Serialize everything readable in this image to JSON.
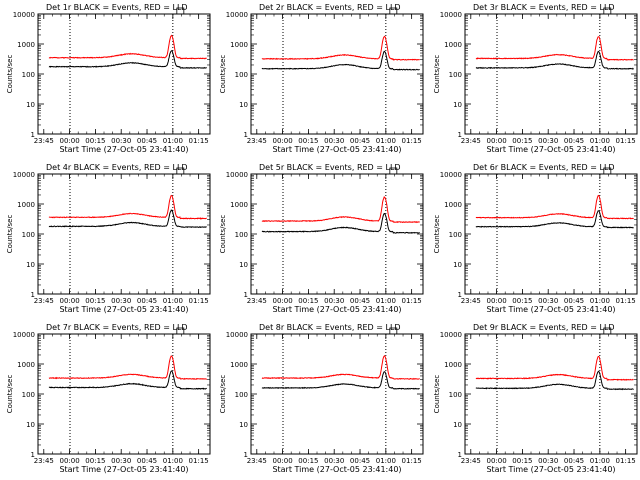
{
  "figure": {
    "x_tick_labels": [
      "23:45",
      "00:00",
      "00:15",
      "00:30",
      "00:45",
      "01:00",
      "01:15"
    ],
    "x_ticks_hours": [
      -0.25,
      0,
      0.25,
      0.5,
      0.75,
      1.0,
      1.25
    ],
    "y_tick_labels": [
      "1",
      "10",
      "100",
      "1000",
      "10000"
    ],
    "y_ticks_values": [
      1,
      10,
      100,
      1000,
      10000
    ],
    "colors": {
      "events": "#000000",
      "lld": "#ff0000",
      "axes": "#000000",
      "background": "#ffffff"
    }
  },
  "chart_data": [
    {
      "type": "line",
      "title": "Det 1r BLACK = Events, RED = LLD",
      "xlabel": "Start Time (27-Oct-05 23:41:40)",
      "ylabel": "Counts/sec",
      "xlim": [
        -0.306,
        1.36
      ],
      "ylim": [
        1,
        10000
      ],
      "yscale": "log",
      "marker_lines_x": [
        0.004,
        1.0
      ],
      "grid": false,
      "series": [
        {
          "color": "#000000",
          "base": 175,
          "hump": 235,
          "peak": 600,
          "final": 160
        },
        {
          "color": "#ff0000",
          "base": 350,
          "hump": 470,
          "peak": 1900,
          "final": 330
        }
      ]
    },
    {
      "type": "line",
      "title": "Det 2r BLACK = Events, RED = LLD",
      "xlabel": "Start Time (27-Oct-05 23:41:40)",
      "ylabel": "Counts/sec",
      "xlim": [
        -0.306,
        1.36
      ],
      "ylim": [
        1,
        10000
      ],
      "yscale": "log",
      "marker_lines_x": [
        0.004,
        1.0
      ],
      "grid": false,
      "series": [
        {
          "color": "#000000",
          "base": 150,
          "hump": 205,
          "peak": 560,
          "final": 140
        },
        {
          "color": "#ff0000",
          "base": 320,
          "hump": 430,
          "peak": 1800,
          "final": 300
        }
      ]
    },
    {
      "type": "line",
      "title": "Det 3r BLACK = Events, RED = LLD",
      "xlabel": "Start Time (27-Oct-05 23:41:40)",
      "ylabel": "Counts/sec",
      "xlim": [
        -0.306,
        1.36
      ],
      "ylim": [
        1,
        10000
      ],
      "yscale": "log",
      "marker_lines_x": [
        0.004,
        1.0
      ],
      "grid": false,
      "series": [
        {
          "color": "#000000",
          "base": 160,
          "hump": 215,
          "peak": 560,
          "final": 150
        },
        {
          "color": "#ff0000",
          "base": 330,
          "hump": 440,
          "peak": 1800,
          "final": 300
        }
      ]
    },
    {
      "type": "line",
      "title": "Det 4r BLACK = Events, RED = LLD",
      "xlabel": "Start Time (27-Oct-05 23:41:40)",
      "ylabel": "Counts/sec",
      "xlim": [
        -0.306,
        1.36
      ],
      "ylim": [
        1,
        10000
      ],
      "yscale": "log",
      "marker_lines_x": [
        0.004,
        1.0
      ],
      "grid": false,
      "series": [
        {
          "color": "#000000",
          "base": 180,
          "hump": 240,
          "peak": 620,
          "final": 170
        },
        {
          "color": "#ff0000",
          "base": 360,
          "hump": 480,
          "peak": 1900,
          "final": 330
        }
      ]
    },
    {
      "type": "line",
      "title": "Det 5r BLACK = Events, RED = LLD",
      "xlabel": "Start Time (27-Oct-05 23:41:40)",
      "ylabel": "Counts/sec",
      "xlim": [
        -0.306,
        1.36
      ],
      "ylim": [
        1,
        10000
      ],
      "yscale": "log",
      "marker_lines_x": [
        0.004,
        1.0
      ],
      "grid": false,
      "series": [
        {
          "color": "#000000",
          "base": 120,
          "hump": 165,
          "peak": 480,
          "final": 110
        },
        {
          "color": "#ff0000",
          "base": 270,
          "hump": 370,
          "peak": 1700,
          "final": 250
        }
      ]
    },
    {
      "type": "line",
      "title": "Det 6r BLACK = Events, RED = LLD",
      "xlabel": "Start Time (27-Oct-05 23:41:40)",
      "ylabel": "Counts/sec",
      "xlim": [
        -0.306,
        1.36
      ],
      "ylim": [
        1,
        10000
      ],
      "yscale": "log",
      "marker_lines_x": [
        0.004,
        1.0
      ],
      "grid": false,
      "series": [
        {
          "color": "#000000",
          "base": 175,
          "hump": 235,
          "peak": 600,
          "final": 165
        },
        {
          "color": "#ff0000",
          "base": 350,
          "hump": 470,
          "peak": 1900,
          "final": 330
        }
      ]
    },
    {
      "type": "line",
      "title": "Det 7r BLACK = Events, RED = LLD",
      "xlabel": "Start Time (27-Oct-05 23:41:40)",
      "ylabel": "Counts/sec",
      "xlim": [
        -0.306,
        1.36
      ],
      "ylim": [
        1,
        10000
      ],
      "yscale": "log",
      "marker_lines_x": [
        0.004,
        1.0
      ],
      "grid": false,
      "series": [
        {
          "color": "#000000",
          "base": 165,
          "hump": 220,
          "peak": 580,
          "final": 150
        },
        {
          "color": "#ff0000",
          "base": 340,
          "hump": 450,
          "peak": 1850,
          "final": 320
        }
      ]
    },
    {
      "type": "line",
      "title": "Det 8r BLACK = Events, RED = LLD",
      "xlabel": "Start Time (27-Oct-05 23:41:40)",
      "ylabel": "Counts/sec",
      "xlim": [
        -0.306,
        1.36
      ],
      "ylim": [
        1,
        10000
      ],
      "yscale": "log",
      "marker_lines_x": [
        0.004,
        1.0
      ],
      "grid": false,
      "series": [
        {
          "color": "#000000",
          "base": 160,
          "hump": 215,
          "peak": 560,
          "final": 150
        },
        {
          "color": "#ff0000",
          "base": 340,
          "hump": 450,
          "peak": 1850,
          "final": 320
        }
      ]
    },
    {
      "type": "line",
      "title": "Det 9r BLACK = Events, RED = LLD",
      "xlabel": "Start Time (27-Oct-05 23:41:40)",
      "ylabel": "Counts/sec",
      "xlim": [
        -0.306,
        1.36
      ],
      "ylim": [
        1,
        10000
      ],
      "yscale": "log",
      "marker_lines_x": [
        0.004,
        1.0
      ],
      "grid": false,
      "series": [
        {
          "color": "#000000",
          "base": 155,
          "hump": 210,
          "peak": 560,
          "final": 145
        },
        {
          "color": "#ff0000",
          "base": 330,
          "hump": 440,
          "peak": 1800,
          "final": 300
        }
      ]
    }
  ]
}
